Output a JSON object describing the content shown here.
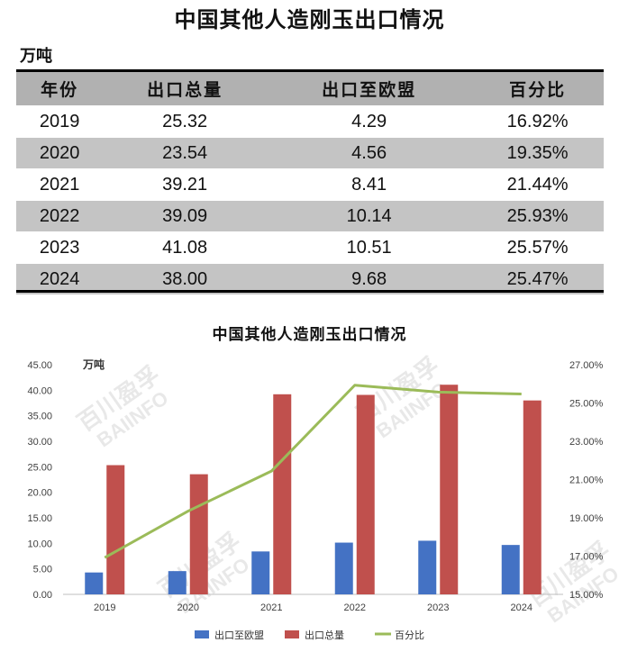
{
  "table": {
    "title": "中国其他人造刚玉出口情况",
    "unit": "万吨",
    "headers": [
      "年份",
      "出口总量",
      "出口至欧盟",
      "百分比"
    ],
    "rows": [
      [
        "2019",
        "25.32",
        "4.29",
        "16.92%"
      ],
      [
        "2020",
        "23.54",
        "4.56",
        "19.35%"
      ],
      [
        "2021",
        "39.21",
        "8.41",
        "21.44%"
      ],
      [
        "2022",
        "39.09",
        "10.14",
        "25.93%"
      ],
      [
        "2023",
        "41.08",
        "10.51",
        "25.57%"
      ],
      [
        "2024",
        "38.00",
        "9.68",
        "25.47%"
      ]
    ]
  },
  "chart_data": {
    "type": "bar",
    "title": "中国其他人造刚玉出口情况",
    "unit_label": "万吨",
    "watermark": [
      "百川盈孚",
      "BAIINFO"
    ],
    "categories": [
      "2019",
      "2020",
      "2021",
      "2022",
      "2023",
      "2024"
    ],
    "series": [
      {
        "name": "出口至欧盟",
        "type": "bar",
        "axis": "left",
        "color": "#4472c4",
        "values": [
          4.29,
          4.56,
          8.41,
          10.14,
          10.51,
          9.68
        ]
      },
      {
        "name": "出口总量",
        "type": "bar",
        "axis": "left",
        "color": "#c0504d",
        "values": [
          25.32,
          23.54,
          39.21,
          39.09,
          41.08,
          38.0
        ]
      },
      {
        "name": "百分比",
        "type": "line",
        "axis": "right",
        "color": "#9bbb59",
        "values": [
          16.92,
          19.35,
          21.44,
          25.93,
          25.57,
          25.47
        ]
      }
    ],
    "ylim": [
      0,
      45
    ],
    "yticks": [
      "0.00",
      "5.00",
      "10.00",
      "15.00",
      "20.00",
      "25.00",
      "30.00",
      "35.00",
      "40.00",
      "45.00"
    ],
    "y2lim": [
      15,
      27
    ],
    "y2ticks": [
      "15.00%",
      "17.00%",
      "19.00%",
      "21.00%",
      "23.00%",
      "25.00%",
      "27.00%"
    ],
    "grid": false,
    "legend": "bottom"
  }
}
